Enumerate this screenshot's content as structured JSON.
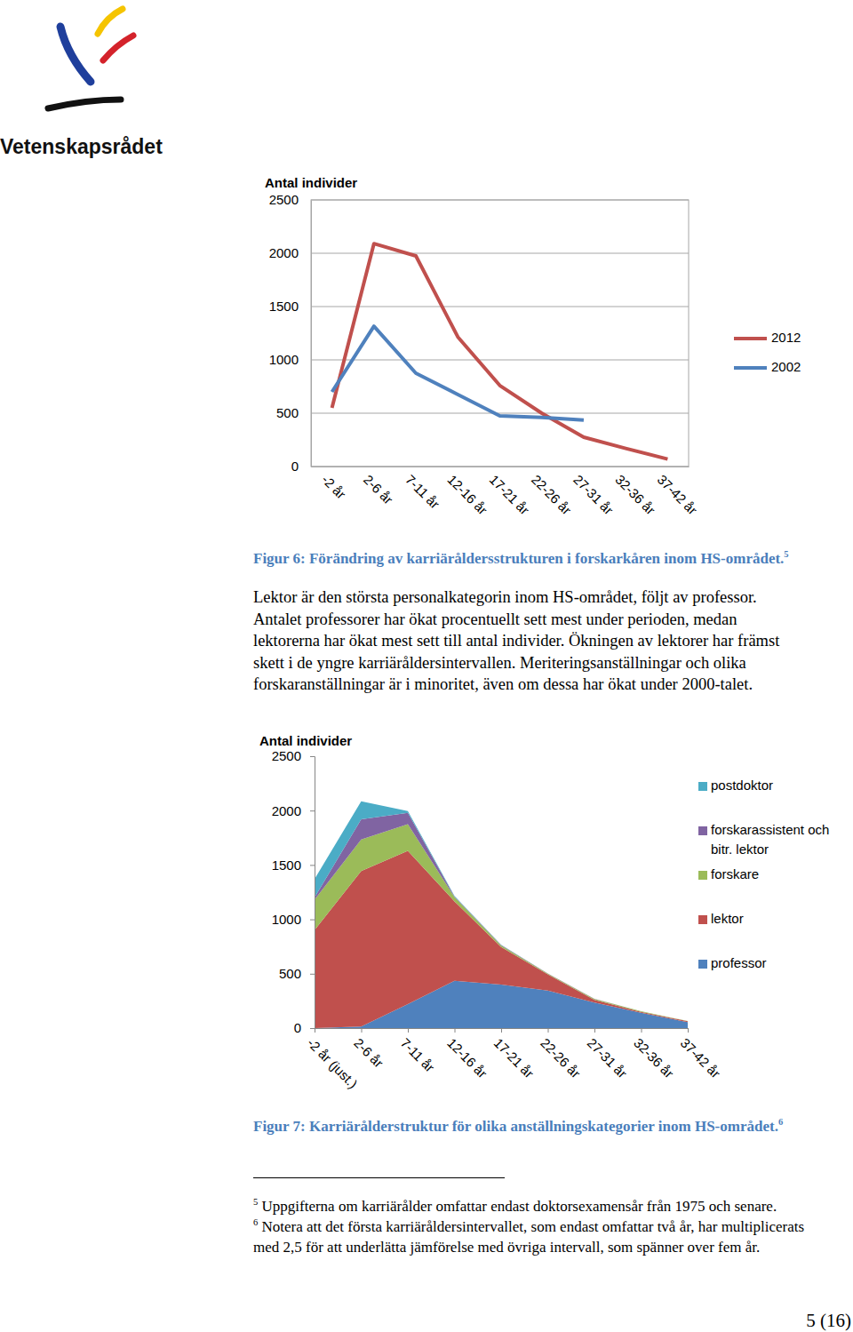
{
  "header": {
    "organization": "Vetenskapsrådet"
  },
  "chart_data": [
    {
      "type": "line",
      "y_label": "Antal individer",
      "categories": [
        "-2 år",
        "2-6 år",
        "7-11 år",
        "12-16 år",
        "17-21 år",
        "22-26 år",
        "27-31 år",
        "32-36 år",
        "37-42 år"
      ],
      "series": [
        {
          "name": "2012",
          "color": "#c0504d",
          "values": [
            550,
            2090,
            1975,
            1215,
            760,
            500,
            275,
            170,
            70
          ]
        },
        {
          "name": "2002",
          "color": "#4f81bd",
          "values": [
            700,
            1315,
            875,
            675,
            475,
            460,
            435,
            null,
            null
          ]
        }
      ],
      "ylim": [
        0,
        2500
      ],
      "yticks": [
        0,
        500,
        1000,
        1500,
        2000,
        2500
      ],
      "grid": true,
      "legend": "right"
    },
    {
      "type": "area",
      "stacked": true,
      "y_label": "Antal individer",
      "categories": [
        "-2 år (just.)",
        "2-6 år",
        "7-11 år",
        "12-16 år",
        "17-21 år",
        "22-26 år",
        "27-31 år",
        "32-36 år",
        "37-42 år"
      ],
      "series": [
        {
          "name": "professor",
          "color": "#4f81bd",
          "values": [
            0,
            15,
            220,
            435,
            400,
            345,
            235,
            140,
            55
          ]
        },
        {
          "name": "lektor",
          "color": "#c0504d",
          "values": [
            900,
            1430,
            1410,
            730,
            345,
            150,
            25,
            10,
            8
          ]
        },
        {
          "name": "forskare",
          "color": "#9bbb59",
          "values": [
            280,
            290,
            245,
            40,
            15,
            5,
            8,
            5,
            2
          ]
        },
        {
          "name": "forskarassistent och bitr. lektor",
          "color": "#8064a2",
          "values": [
            20,
            185,
            105,
            5,
            3,
            2,
            1,
            1,
            0
          ]
        },
        {
          "name": "postdoktor",
          "color": "#4bacc6",
          "values": [
            170,
            165,
            15,
            5,
            2,
            1,
            1,
            0,
            0
          ]
        }
      ],
      "ylim": [
        0,
        2500
      ],
      "yticks": [
        0,
        500,
        1000,
        1500,
        2000,
        2500
      ],
      "grid": false,
      "legend": "right"
    }
  ],
  "captions": [
    {
      "text": "Figur 6: Förändring av karriäråldersstrukturen i forskarkåren inom HS-området.",
      "footnote_ref": "5"
    },
    {
      "text": "Figur 7: Karriärålderstruktur för olika anställningskategorier inom HS-området.",
      "footnote_ref": "6"
    }
  ],
  "paragraph": "Lektor är den största personalkategorin inom HS-området, följt av professor. Antalet professorer har ökat procentuellt sett mest under perioden, medan lektorerna har ökat mest sett till antal individer. Ökningen av lektorer har främst skett i de yngre karriäråldersintervallen. Meriteringsanställningar och olika forskaranställningar är i minoritet, även om dessa har ökat under 2000-talet.",
  "footnotes": [
    {
      "number": "5",
      "text": "Uppgifterna om karriärålder omfattar endast doktorsexamensår från 1975 och senare."
    },
    {
      "number": "6",
      "text": "Notera att det första karriäråldersintervallet, som endast omfattar två år, har multiplicerats med 2,5 för att underlätta jämförelse med övriga intervall, som spänner over fem år."
    }
  ],
  "page_number": "5 (16)"
}
